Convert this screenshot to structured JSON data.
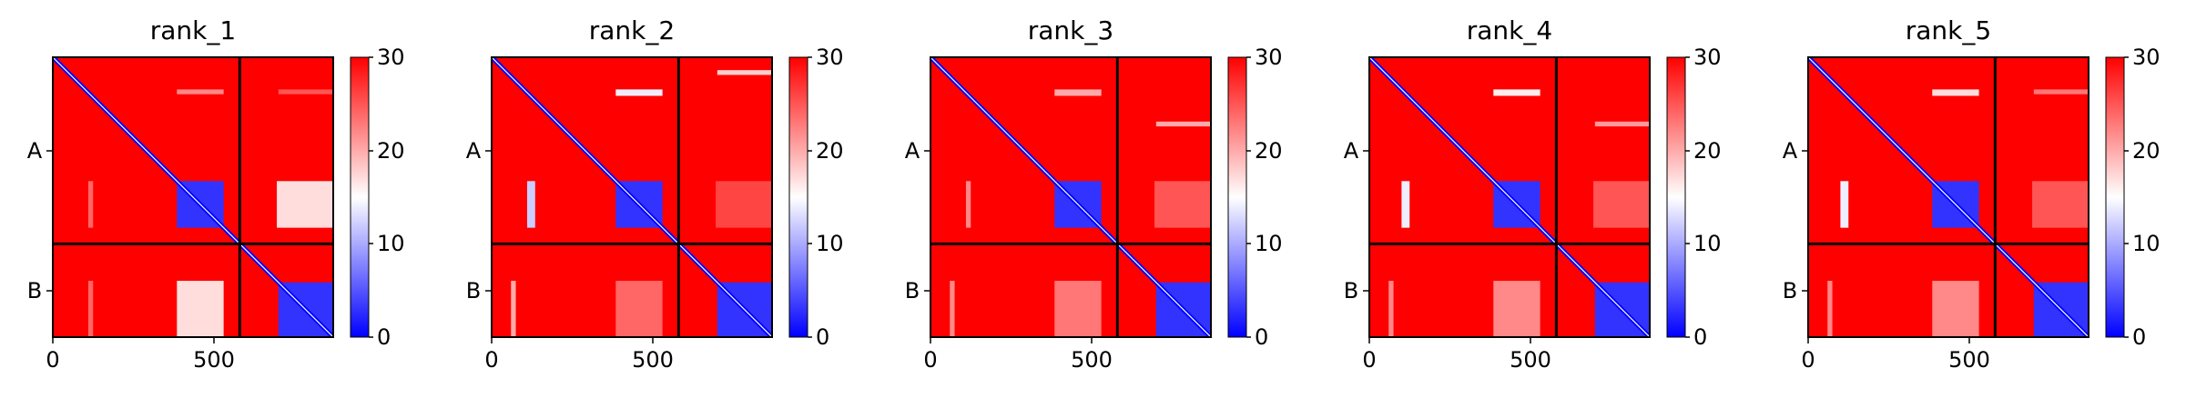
{
  "chart_data": [
    {
      "type": "heatmap",
      "title": "rank_1",
      "xlabel": "",
      "ylabel": "",
      "x_ticks": [
        0,
        500
      ],
      "xlim": [
        0,
        870
      ],
      "ylim": [
        870,
        0
      ],
      "chain_boundary": 580,
      "y_tick_labels": [
        "A",
        "B"
      ],
      "y_tick_positions": [
        290,
        725
      ],
      "colorbar": {
        "min": 0,
        "max": 30,
        "ticks": [
          0,
          10,
          20,
          30
        ],
        "colormap": [
          "#0000ff",
          "#ffffff",
          "#ff0000"
        ]
      },
      "regions": [
        {
          "x": [
            385,
            530
          ],
          "y": [
            385,
            530
          ],
          "value": 3
        },
        {
          "x": [
            700,
            870
          ],
          "y": [
            700,
            870
          ],
          "value": 3
        },
        {
          "x": [
            695,
            870
          ],
          "y": [
            385,
            530
          ],
          "value": 17
        },
        {
          "x": [
            385,
            530
          ],
          "y": [
            695,
            870
          ],
          "value": 17
        },
        {
          "x": [
            110,
            125
          ],
          "y": [
            385,
            530
          ],
          "value": 24
        },
        {
          "x": [
            110,
            125
          ],
          "y": [
            695,
            870
          ],
          "value": 24
        },
        {
          "x": [
            385,
            530
          ],
          "y": [
            100,
            115
          ],
          "value": 22
        },
        {
          "x": [
            700,
            870
          ],
          "y": [
            100,
            115
          ],
          "value": 25
        }
      ]
    },
    {
      "type": "heatmap",
      "title": "rank_2",
      "xlabel": "",
      "ylabel": "",
      "x_ticks": [
        0,
        500
      ],
      "xlim": [
        0,
        870
      ],
      "ylim": [
        870,
        0
      ],
      "chain_boundary": 580,
      "y_tick_labels": [
        "A",
        "B"
      ],
      "y_tick_positions": [
        290,
        725
      ],
      "colorbar": {
        "min": 0,
        "max": 30,
        "ticks": [
          0,
          10,
          20,
          30
        ],
        "colormap": [
          "#0000ff",
          "#ffffff",
          "#ff0000"
        ]
      },
      "regions": [
        {
          "x": [
            385,
            530
          ],
          "y": [
            385,
            530
          ],
          "value": 3
        },
        {
          "x": [
            700,
            870
          ],
          "y": [
            700,
            870
          ],
          "value": 3
        },
        {
          "x": [
            695,
            870
          ],
          "y": [
            385,
            530
          ],
          "value": 26
        },
        {
          "x": [
            385,
            530
          ],
          "y": [
            695,
            870
          ],
          "value": 24
        },
        {
          "x": [
            110,
            135
          ],
          "y": [
            385,
            530
          ],
          "value": 12
        },
        {
          "x": [
            60,
            75
          ],
          "y": [
            695,
            870
          ],
          "value": 20
        },
        {
          "x": [
            385,
            530
          ],
          "y": [
            100,
            120
          ],
          "value": 14
        },
        {
          "x": [
            700,
            870
          ],
          "y": [
            40,
            55
          ],
          "value": 18
        }
      ]
    },
    {
      "type": "heatmap",
      "title": "rank_3",
      "xlabel": "",
      "ylabel": "",
      "x_ticks": [
        0,
        500
      ],
      "xlim": [
        0,
        870
      ],
      "ylim": [
        870,
        0
      ],
      "chain_boundary": 580,
      "y_tick_labels": [
        "A",
        "B"
      ],
      "y_tick_positions": [
        290,
        725
      ],
      "colorbar": {
        "min": 0,
        "max": 30,
        "ticks": [
          0,
          10,
          20,
          30
        ],
        "colormap": [
          "#0000ff",
          "#ffffff",
          "#ff0000"
        ]
      },
      "regions": [
        {
          "x": [
            385,
            530
          ],
          "y": [
            385,
            530
          ],
          "value": 3
        },
        {
          "x": [
            700,
            870
          ],
          "y": [
            700,
            870
          ],
          "value": 3
        },
        {
          "x": [
            695,
            870
          ],
          "y": [
            385,
            530
          ],
          "value": 25
        },
        {
          "x": [
            385,
            530
          ],
          "y": [
            695,
            870
          ],
          "value": 23
        },
        {
          "x": [
            110,
            125
          ],
          "y": [
            385,
            530
          ],
          "value": 22
        },
        {
          "x": [
            60,
            75
          ],
          "y": [
            695,
            870
          ],
          "value": 22
        },
        {
          "x": [
            385,
            530
          ],
          "y": [
            100,
            120
          ],
          "value": 20
        },
        {
          "x": [
            700,
            870
          ],
          "y": [
            200,
            215
          ],
          "value": 20
        }
      ]
    },
    {
      "type": "heatmap",
      "title": "rank_4",
      "xlabel": "",
      "ylabel": "",
      "x_ticks": [
        0,
        500
      ],
      "xlim": [
        0,
        870
      ],
      "ylim": [
        870,
        0
      ],
      "chain_boundary": 580,
      "y_tick_labels": [
        "A",
        "B"
      ],
      "y_tick_positions": [
        290,
        725
      ],
      "colorbar": {
        "min": 0,
        "max": 30,
        "ticks": [
          0,
          10,
          20,
          30
        ],
        "colormap": [
          "#0000ff",
          "#ffffff",
          "#ff0000"
        ]
      },
      "regions": [
        {
          "x": [
            385,
            530
          ],
          "y": [
            385,
            530
          ],
          "value": 3
        },
        {
          "x": [
            700,
            870
          ],
          "y": [
            700,
            870
          ],
          "value": 3
        },
        {
          "x": [
            695,
            870
          ],
          "y": [
            385,
            530
          ],
          "value": 25
        },
        {
          "x": [
            385,
            530
          ],
          "y": [
            695,
            870
          ],
          "value": 22
        },
        {
          "x": [
            100,
            125
          ],
          "y": [
            385,
            530
          ],
          "value": 14
        },
        {
          "x": [
            60,
            75
          ],
          "y": [
            695,
            870
          ],
          "value": 22
        },
        {
          "x": [
            385,
            530
          ],
          "y": [
            100,
            120
          ],
          "value": 16
        },
        {
          "x": [
            700,
            870
          ],
          "y": [
            200,
            215
          ],
          "value": 21
        }
      ]
    },
    {
      "type": "heatmap",
      "title": "rank_5",
      "xlabel": "",
      "ylabel": "",
      "x_ticks": [
        0,
        500
      ],
      "xlim": [
        0,
        870
      ],
      "ylim": [
        870,
        0
      ],
      "chain_boundary": 580,
      "y_tick_labels": [
        "A",
        "B"
      ],
      "y_tick_positions": [
        290,
        725
      ],
      "colorbar": {
        "min": 0,
        "max": 30,
        "ticks": [
          0,
          10,
          20,
          30
        ],
        "colormap": [
          "#0000ff",
          "#ffffff",
          "#ff0000"
        ]
      },
      "regions": [
        {
          "x": [
            385,
            530
          ],
          "y": [
            385,
            530
          ],
          "value": 3
        },
        {
          "x": [
            700,
            870
          ],
          "y": [
            700,
            870
          ],
          "value": 3
        },
        {
          "x": [
            695,
            870
          ],
          "y": [
            385,
            530
          ],
          "value": 25
        },
        {
          "x": [
            385,
            530
          ],
          "y": [
            695,
            870
          ],
          "value": 22
        },
        {
          "x": [
            100,
            125
          ],
          "y": [
            385,
            530
          ],
          "value": 14
        },
        {
          "x": [
            60,
            75
          ],
          "y": [
            695,
            870
          ],
          "value": 22
        },
        {
          "x": [
            385,
            530
          ],
          "y": [
            100,
            120
          ],
          "value": 17
        },
        {
          "x": [
            700,
            870
          ],
          "y": [
            100,
            115
          ],
          "value": 23
        }
      ]
    }
  ]
}
